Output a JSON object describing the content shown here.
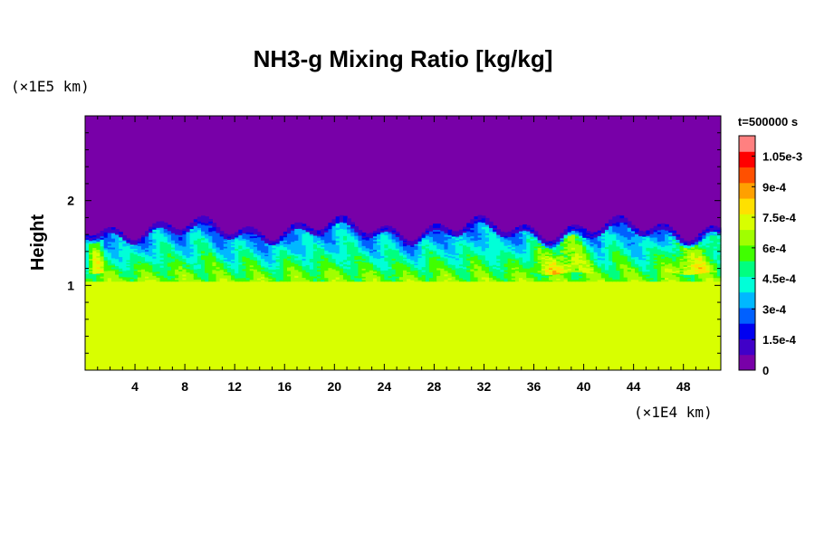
{
  "chart_data": {
    "type": "heatmap",
    "title": "NH3-g Mixing Ratio [kg/kg]",
    "ylabel": "Height",
    "y_unit": "(×1E5 km)",
    "x_unit": "(×1E4 km)",
    "time_label": "t=500000 s",
    "xlim": [
      0,
      51
    ],
    "ylim": [
      0,
      3
    ],
    "x_ticks": [
      "4",
      "8",
      "12",
      "16",
      "20",
      "24",
      "28",
      "32",
      "36",
      "40",
      "44",
      "48"
    ],
    "x_tick_values": [
      4,
      8,
      12,
      16,
      20,
      24,
      28,
      32,
      36,
      40,
      44,
      48
    ],
    "y_ticks": [
      "1",
      "2"
    ],
    "y_tick_values": [
      1,
      2
    ],
    "colorbar": {
      "min": 0,
      "max": 0.00115,
      "labels": [
        "1.05e-3",
        "9e-4",
        "7.5e-4",
        "6e-4",
        "4.5e-4",
        "3e-4",
        "1.5e-4",
        "0"
      ],
      "label_values": [
        0.00105,
        0.0009,
        0.00075,
        0.0006,
        0.00045,
        0.0003,
        0.00015,
        0
      ],
      "colors": [
        "#7800a8",
        "#4000c8",
        "#0000f0",
        "#0060ff",
        "#00b8ff",
        "#00ffd8",
        "#00ff80",
        "#40ff00",
        "#a0ff00",
        "#d8ff00",
        "#ffe000",
        "#ffa000",
        "#ff5000",
        "#ff0000",
        "#ff8080"
      ]
    },
    "regions": {
      "upper_value": 0,
      "lower_value": 0.00075,
      "lower_top_height": 1.05,
      "mixing_layer_value_range": [
        0.0002,
        0.001
      ],
      "mixing_layer_top_height": 1.75,
      "hotspot_regions_x": [
        [
          0,
          1.5
        ],
        [
          35,
          41
        ],
        [
          46,
          51
        ]
      ]
    }
  }
}
